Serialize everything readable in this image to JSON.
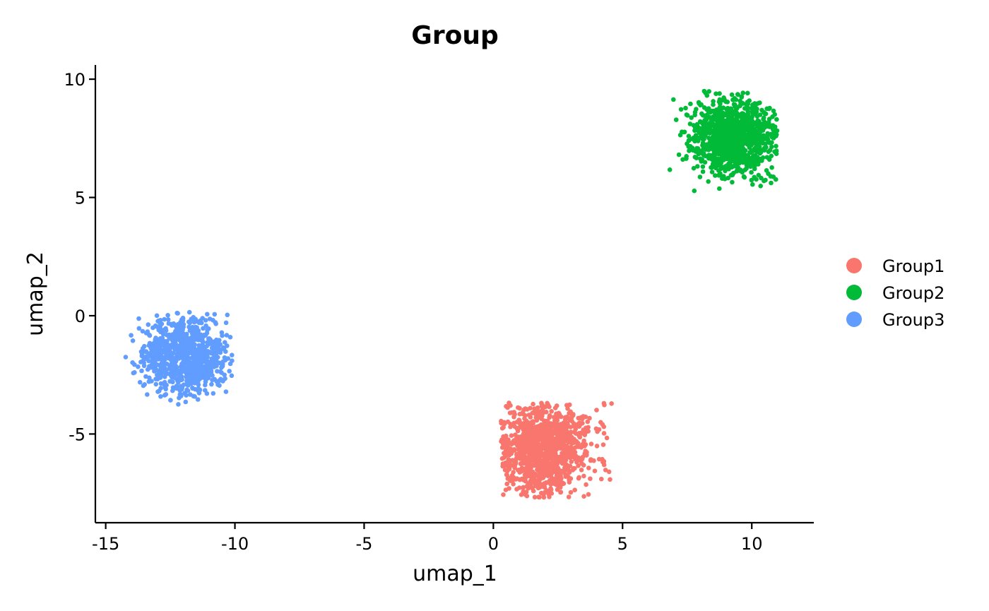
{
  "chart_data": {
    "type": "scatter",
    "title": "Group",
    "xlabel": "umap_1",
    "ylabel": "umap_2",
    "xlim": [
      -15.4,
      12.4
    ],
    "ylim": [
      -8.75,
      10.6
    ],
    "xticks": [
      -15,
      -10,
      -5,
      0,
      5,
      10
    ],
    "xtick_labels": [
      "-15",
      "-10",
      "-5",
      "0",
      "5",
      "10"
    ],
    "yticks": [
      -5,
      0,
      5,
      10
    ],
    "ytick_labels": [
      "-5",
      "0",
      "5",
      "10"
    ],
    "grid": false,
    "legend_position": "right",
    "series": [
      {
        "name": "Group1",
        "color": "#F8766D",
        "center": [
          1.9,
          -5.65
        ],
        "spread": [
          0.95,
          0.95
        ],
        "n_points": 1100,
        "x_range": [
          0.3,
          4.6
        ],
        "y_range": [
          -7.7,
          -3.65
        ]
      },
      {
        "name": "Group2",
        "color": "#00BA38",
        "center": [
          9.3,
          7.55
        ],
        "spread": [
          0.8,
          0.8
        ],
        "n_points": 1100,
        "x_range": [
          6.7,
          11.0
        ],
        "y_range": [
          4.95,
          9.6
        ]
      },
      {
        "name": "Group3",
        "color": "#619CFF",
        "center": [
          -11.9,
          -1.7
        ],
        "spread": [
          0.8,
          0.8
        ],
        "n_points": 900,
        "x_range": [
          -14.3,
          -10.1
        ],
        "y_range": [
          -3.9,
          0.15
        ]
      }
    ]
  }
}
